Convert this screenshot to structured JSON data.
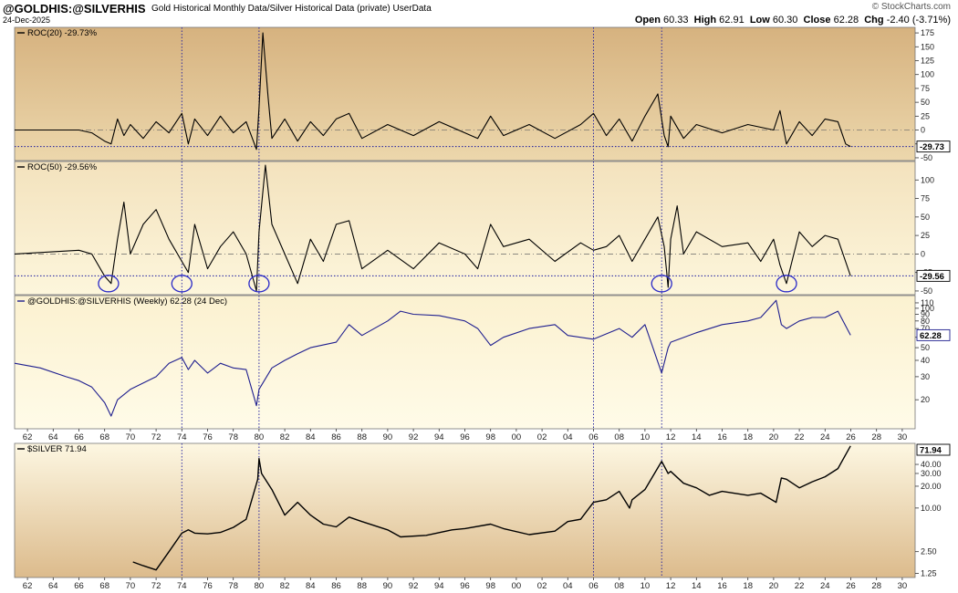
{
  "header": {
    "symbol": "@GOLDHIS:@SILVERHIS",
    "description": "Gold Historical Monthly Data/Silver Historical Data (private)",
    "userdata": "UserData",
    "date": "24-Dec-2025",
    "open_label": "Open",
    "open": "60.33",
    "high_label": "High",
    "high": "62.91",
    "low_label": "Low",
    "low": "60.30",
    "close_label": "Close",
    "close": "62.28",
    "chg_label": "Chg",
    "chg": "-2.40 (-3.71%)",
    "brand": "© StockCharts.com"
  },
  "colors": {
    "panel_top": "#d9b787",
    "panel_light": "#fbf3d6",
    "ratio_line": "#1f1f8f",
    "black_line": "#000000",
    "guide": "#1a1aa0",
    "circle": "#2a2ac8"
  },
  "x_axis": {
    "labels": [
      "62",
      "64",
      "66",
      "68",
      "70",
      "72",
      "74",
      "76",
      "78",
      "80",
      "82",
      "84",
      "86",
      "88",
      "90",
      "92",
      "94",
      "96",
      "98",
      "00",
      "02",
      "04",
      "06",
      "08",
      "10",
      "12",
      "14",
      "16",
      "18",
      "20",
      "22",
      "24",
      "26",
      "28",
      "30"
    ],
    "start_year": 1961,
    "end_year": 2031
  },
  "guides": {
    "vertical_years": [
      1974.0,
      1980.0,
      2006.0,
      2011.3
    ],
    "circled_years": [
      1968.3,
      1974.0,
      1980.0,
      2011.3,
      2021.0
    ]
  },
  "chart_data": [
    {
      "type": "line",
      "name": "roc20",
      "label": "ROC(20) -29.73%",
      "ylim": [
        -55,
        185
      ],
      "ticks": [
        "175",
        "150",
        "125",
        "100",
        "75",
        "50",
        "25",
        "0",
        "-25",
        "-50"
      ],
      "tick_values": [
        175,
        150,
        125,
        100,
        75,
        50,
        25,
        0,
        -25,
        -50
      ],
      "last_value": "-29.73",
      "reference_level": -29.73,
      "points": [
        [
          1961,
          0
        ],
        [
          1966,
          0
        ],
        [
          1967,
          -5
        ],
        [
          1968,
          -20
        ],
        [
          1968.5,
          -25
        ],
        [
          1969,
          20
        ],
        [
          1969.5,
          -10
        ],
        [
          1970,
          10
        ],
        [
          1971,
          -15
        ],
        [
          1972,
          15
        ],
        [
          1973,
          -5
        ],
        [
          1974,
          30
        ],
        [
          1974.5,
          -25
        ],
        [
          1975,
          20
        ],
        [
          1976,
          -10
        ],
        [
          1977,
          25
        ],
        [
          1978,
          -5
        ],
        [
          1979,
          15
        ],
        [
          1979.8,
          -35
        ],
        [
          1980,
          40
        ],
        [
          1980.3,
          175
        ],
        [
          1980.7,
          60
        ],
        [
          1981,
          -15
        ],
        [
          1982,
          20
        ],
        [
          1983,
          -20
        ],
        [
          1984,
          15
        ],
        [
          1985,
          -10
        ],
        [
          1986,
          20
        ],
        [
          1987,
          30
        ],
        [
          1988,
          -15
        ],
        [
          1990,
          10
        ],
        [
          1992,
          -10
        ],
        [
          1994,
          15
        ],
        [
          1996,
          -5
        ],
        [
          1997,
          -15
        ],
        [
          1998,
          25
        ],
        [
          1999,
          -10
        ],
        [
          2001,
          10
        ],
        [
          2003,
          -15
        ],
        [
          2005,
          10
        ],
        [
          2006,
          30
        ],
        [
          2007,
          -10
        ],
        [
          2008,
          20
        ],
        [
          2009,
          -20
        ],
        [
          2010,
          25
        ],
        [
          2011,
          65
        ],
        [
          2011.5,
          -10
        ],
        [
          2011.8,
          -30
        ],
        [
          2012,
          25
        ],
        [
          2013,
          -15
        ],
        [
          2014,
          10
        ],
        [
          2016,
          -5
        ],
        [
          2018,
          10
        ],
        [
          2020,
          0
        ],
        [
          2020.5,
          35
        ],
        [
          2021,
          -25
        ],
        [
          2022,
          15
        ],
        [
          2023,
          -10
        ],
        [
          2024,
          20
        ],
        [
          2025,
          15
        ],
        [
          2025.6,
          -25
        ],
        [
          2025.98,
          -29.73
        ]
      ]
    },
    {
      "type": "line",
      "name": "roc50",
      "label": "ROC(50) -29.56%",
      "ylim": [
        -55,
        125
      ],
      "ticks": [
        "100",
        "75",
        "50",
        "25",
        "0",
        "-25",
        "-50"
      ],
      "tick_values": [
        100,
        75,
        50,
        25,
        0,
        -25,
        -50
      ],
      "last_value": "-29.56",
      "reference_level": -29.56,
      "points": [
        [
          1961,
          0
        ],
        [
          1966,
          5
        ],
        [
          1967,
          0
        ],
        [
          1968,
          -30
        ],
        [
          1968.5,
          -40
        ],
        [
          1969,
          20
        ],
        [
          1969.5,
          70
        ],
        [
          1970,
          0
        ],
        [
          1971,
          40
        ],
        [
          1972,
          60
        ],
        [
          1973,
          20
        ],
        [
          1974,
          -10
        ],
        [
          1974.5,
          -25
        ],
        [
          1975,
          40
        ],
        [
          1976,
          -20
        ],
        [
          1977,
          10
        ],
        [
          1978,
          30
        ],
        [
          1979,
          0
        ],
        [
          1979.8,
          -50
        ],
        [
          1980,
          30
        ],
        [
          1980.5,
          120
        ],
        [
          1981,
          40
        ],
        [
          1982,
          0
        ],
        [
          1983,
          -40
        ],
        [
          1984,
          20
        ],
        [
          1985,
          -10
        ],
        [
          1986,
          40
        ],
        [
          1987,
          45
        ],
        [
          1988,
          -20
        ],
        [
          1990,
          5
        ],
        [
          1992,
          -20
        ],
        [
          1994,
          15
        ],
        [
          1996,
          0
        ],
        [
          1997,
          -20
        ],
        [
          1998,
          40
        ],
        [
          1999,
          10
        ],
        [
          2001,
          20
        ],
        [
          2003,
          -10
        ],
        [
          2005,
          15
        ],
        [
          2006,
          5
        ],
        [
          2007,
          10
        ],
        [
          2008,
          25
        ],
        [
          2009,
          -10
        ],
        [
          2010,
          20
        ],
        [
          2011,
          50
        ],
        [
          2011.5,
          10
        ],
        [
          2011.8,
          -45
        ],
        [
          2012,
          20
        ],
        [
          2012.5,
          65
        ],
        [
          2013,
          0
        ],
        [
          2014,
          30
        ],
        [
          2016,
          10
        ],
        [
          2018,
          15
        ],
        [
          2019,
          -10
        ],
        [
          2020,
          20
        ],
        [
          2020.5,
          -15
        ],
        [
          2021,
          -40
        ],
        [
          2022,
          30
        ],
        [
          2023,
          10
        ],
        [
          2024,
          25
        ],
        [
          2025,
          20
        ],
        [
          2025.98,
          -29.56
        ]
      ]
    },
    {
      "type": "line",
      "name": "ratio",
      "label": "@GOLDHIS:@SILVERHIS (Weekly) 62.28 (24 Dec)",
      "scale": "log",
      "ylim": [
        12,
        125
      ],
      "ticks": [
        "110",
        "100",
        "90",
        "80",
        "70",
        "60",
        "50",
        "40",
        "30",
        "20"
      ],
      "tick_values": [
        110,
        100,
        90,
        80,
        70,
        60,
        50,
        40,
        30,
        20
      ],
      "last_value": "62.28",
      "points": [
        [
          1961,
          38
        ],
        [
          1963,
          35
        ],
        [
          1965,
          30
        ],
        [
          1966,
          28
        ],
        [
          1967,
          25
        ],
        [
          1968,
          19
        ],
        [
          1968.5,
          15
        ],
        [
          1969,
          20
        ],
        [
          1970,
          24
        ],
        [
          1972,
          30
        ],
        [
          1973,
          38
        ],
        [
          1974,
          42
        ],
        [
          1974.5,
          34
        ],
        [
          1975,
          40
        ],
        [
          1976,
          32
        ],
        [
          1977,
          38
        ],
        [
          1978,
          35
        ],
        [
          1979,
          34
        ],
        [
          1979.8,
          18
        ],
        [
          1980,
          24
        ],
        [
          1981,
          35
        ],
        [
          1982,
          40
        ],
        [
          1983,
          45
        ],
        [
          1984,
          50
        ],
        [
          1986,
          55
        ],
        [
          1987,
          75
        ],
        [
          1988,
          62
        ],
        [
          1990,
          80
        ],
        [
          1991,
          95
        ],
        [
          1992,
          90
        ],
        [
          1994,
          88
        ],
        [
          1996,
          80
        ],
        [
          1997,
          70
        ],
        [
          1998,
          52
        ],
        [
          1999,
          60
        ],
        [
          2001,
          70
        ],
        [
          2003,
          75
        ],
        [
          2004,
          62
        ],
        [
          2006,
          58
        ],
        [
          2008,
          70
        ],
        [
          2009,
          60
        ],
        [
          2010,
          75
        ],
        [
          2011.3,
          32
        ],
        [
          2011.8,
          50
        ],
        [
          2012,
          55
        ],
        [
          2014,
          65
        ],
        [
          2016,
          75
        ],
        [
          2018,
          80
        ],
        [
          2019,
          85
        ],
        [
          2020.2,
          115
        ],
        [
          2020.6,
          75
        ],
        [
          2021,
          70
        ],
        [
          2022,
          80
        ],
        [
          2023,
          85
        ],
        [
          2024,
          85
        ],
        [
          2025,
          95
        ],
        [
          2025.98,
          62.28
        ]
      ]
    },
    {
      "type": "line",
      "name": "silver",
      "label": "$SILVER 71.94",
      "scale": "log",
      "ylim": [
        1.1,
        78
      ],
      "ticks": [
        "40.00",
        "30.00",
        "20.00",
        "10.00",
        "2.50",
        "1.25"
      ],
      "tick_values": [
        40,
        30,
        20,
        10,
        2.5,
        1.25
      ],
      "last_value": "71.94",
      "points": [
        [
          1970.2,
          1.8
        ],
        [
          1971,
          1.6
        ],
        [
          1972,
          1.4
        ],
        [
          1973,
          2.5
        ],
        [
          1974,
          4.5
        ],
        [
          1974.5,
          5.0
        ],
        [
          1975,
          4.5
        ],
        [
          1976,
          4.4
        ],
        [
          1977,
          4.6
        ],
        [
          1978,
          5.4
        ],
        [
          1979,
          7.0
        ],
        [
          1979.9,
          25
        ],
        [
          1980,
          48
        ],
        [
          1980.2,
          30
        ],
        [
          1981,
          18
        ],
        [
          1982,
          8
        ],
        [
          1983,
          12
        ],
        [
          1984,
          8
        ],
        [
          1985,
          6
        ],
        [
          1986,
          5.5
        ],
        [
          1987,
          7.5
        ],
        [
          1988,
          6.5
        ],
        [
          1990,
          5
        ],
        [
          1991,
          4
        ],
        [
          1993,
          4.2
        ],
        [
          1995,
          5
        ],
        [
          1996,
          5.2
        ],
        [
          1998,
          6
        ],
        [
          1999,
          5.2
        ],
        [
          2001,
          4.3
        ],
        [
          2003,
          4.8
        ],
        [
          2004,
          6.5
        ],
        [
          2005,
          7
        ],
        [
          2006,
          12
        ],
        [
          2007,
          13
        ],
        [
          2008,
          17
        ],
        [
          2008.8,
          10
        ],
        [
          2009,
          13
        ],
        [
          2010,
          18
        ],
        [
          2011.3,
          44
        ],
        [
          2011.8,
          30
        ],
        [
          2012,
          32
        ],
        [
          2013,
          22
        ],
        [
          2014,
          19
        ],
        [
          2015,
          15
        ],
        [
          2016,
          17
        ],
        [
          2018,
          15
        ],
        [
          2019,
          16
        ],
        [
          2020.2,
          12
        ],
        [
          2020.6,
          26
        ],
        [
          2021,
          25
        ],
        [
          2022,
          19
        ],
        [
          2023,
          23
        ],
        [
          2024,
          27
        ],
        [
          2025,
          35
        ],
        [
          2025.98,
          71.94
        ]
      ]
    }
  ]
}
